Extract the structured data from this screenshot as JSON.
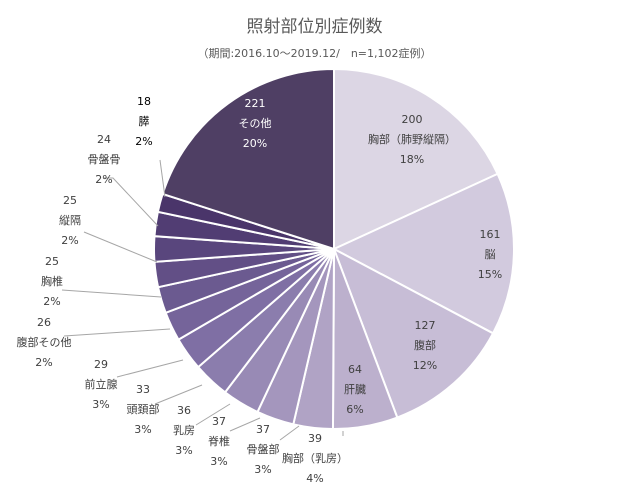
{
  "chart_data": {
    "type": "pie",
    "title": "照射部位別症例数",
    "subtitle": "（期間:2016.10～2019.12/　n=1,102症例）",
    "slices": [
      {
        "label": "胸部（肺野縦隔）",
        "value": 200,
        "percent": "18%",
        "color": "#dcd6e4"
      },
      {
        "label": "脳",
        "value": 161,
        "percent": "15%",
        "color": "#d2cade"
      },
      {
        "label": "腹部",
        "value": 127,
        "percent": "12%",
        "color": "#c7bdd6"
      },
      {
        "label": "肝臓",
        "value": 64,
        "percent": "6%",
        "color": "#bcb0cd"
      },
      {
        "label": "胸部（乳房）",
        "value": 39,
        "percent": "4%",
        "color": "#b0a3c5"
      },
      {
        "label": "骨盤部",
        "value": 37,
        "percent": "3%",
        "color": "#a496bd"
      },
      {
        "label": "脊椎",
        "value": 37,
        "percent": "3%",
        "color": "#988ab5"
      },
      {
        "label": "乳房",
        "value": 36,
        "percent": "3%",
        "color": "#8b7dad"
      },
      {
        "label": "頭頚部",
        "value": 33,
        "percent": "3%",
        "color": "#7f6fa4"
      },
      {
        "label": "前立腺",
        "value": 29,
        "percent": "3%",
        "color": "#75649a"
      },
      {
        "label": "腹部その他",
        "value": 26,
        "percent": "2%",
        "color": "#6b5a90"
      },
      {
        "label": "胸椎",
        "value": 25,
        "percent": "2%",
        "color": "#624f86"
      },
      {
        "label": "縦隔",
        "value": 25,
        "percent": "2%",
        "color": "#59467d"
      },
      {
        "label": "骨盤骨",
        "value": 24,
        "percent": "2%",
        "color": "#513d73"
      },
      {
        "label": "膵",
        "value": 18,
        "percent": "2%",
        "color": "#4a356a"
      },
      {
        "label": "その他",
        "value": 221,
        "percent": "20%",
        "color": "#4f3f64"
      }
    ],
    "legend": "none"
  }
}
